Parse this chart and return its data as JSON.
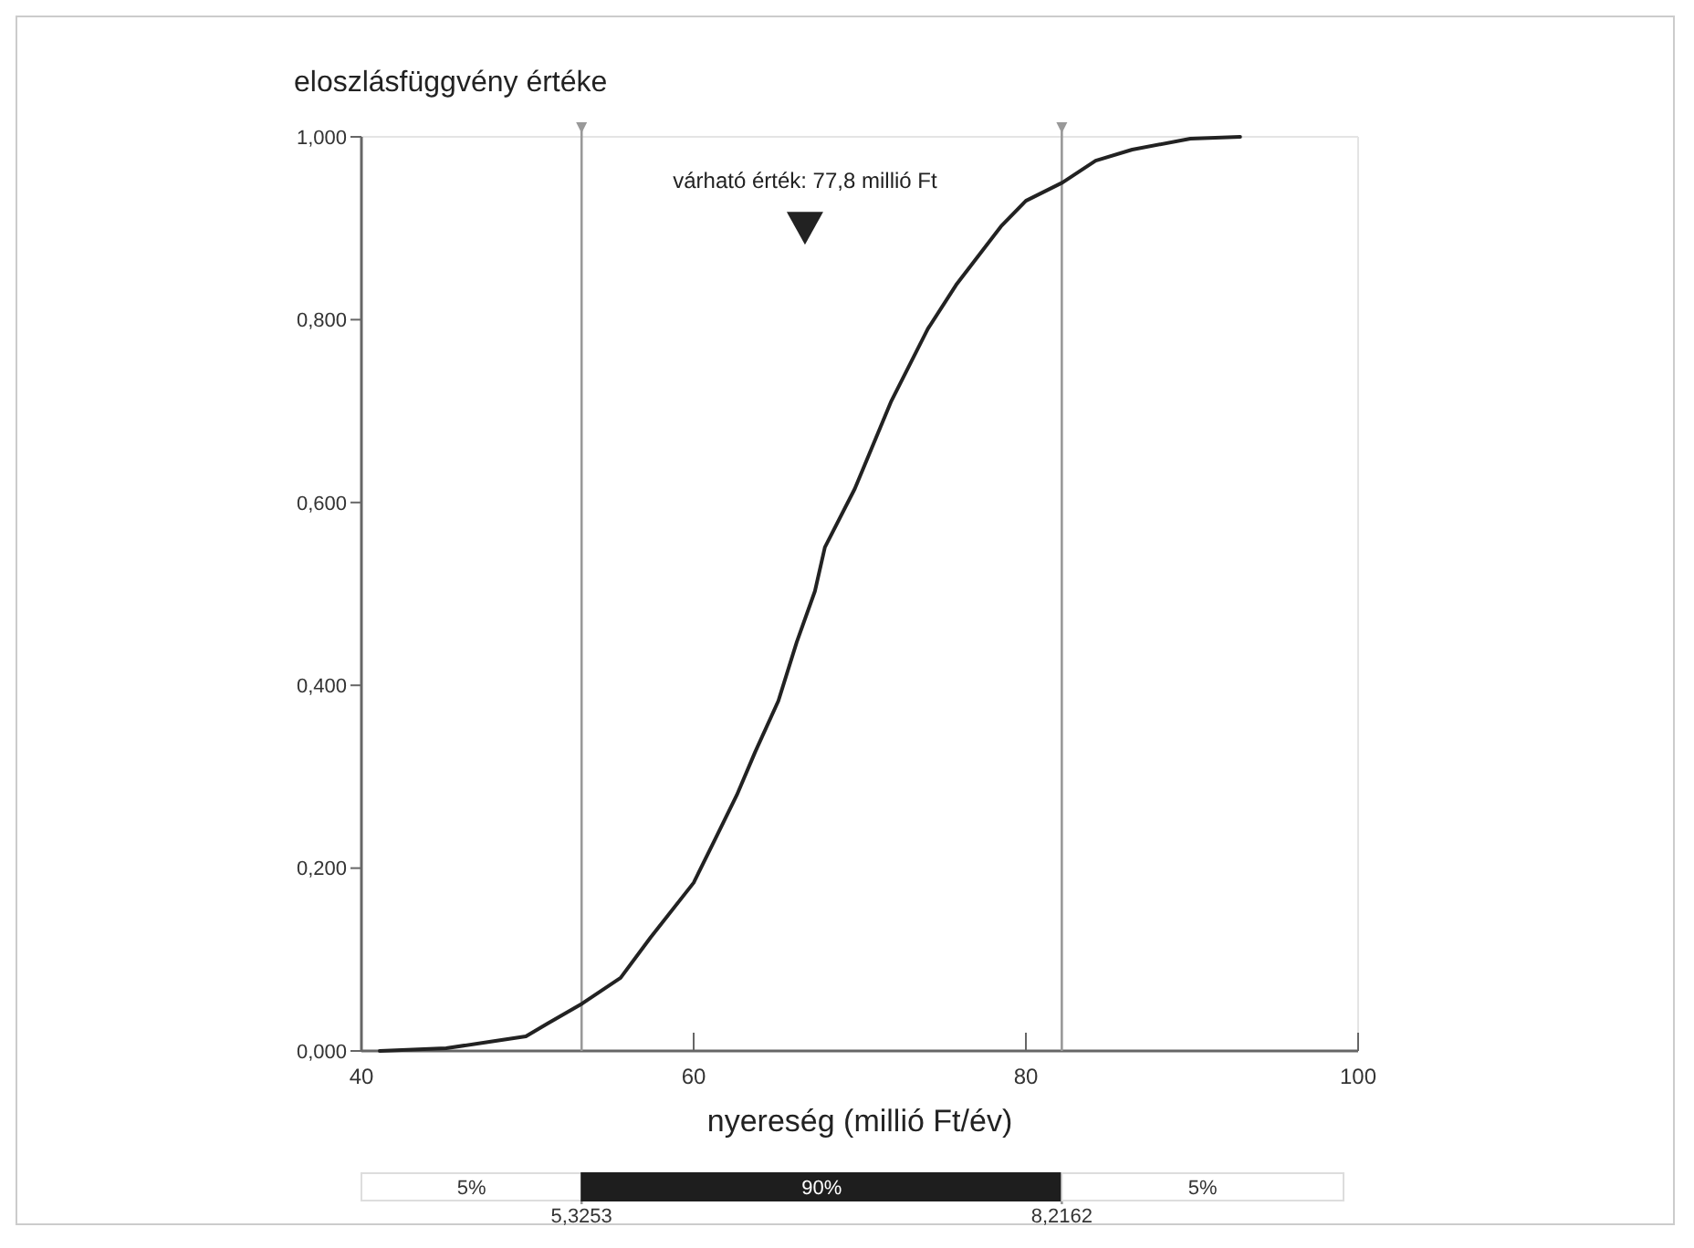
{
  "chart_data": {
    "type": "line",
    "ylabel": "eloszlásfüggvény értéke",
    "xlabel": "nyereség (millió Ft/év)",
    "x": [
      41.1,
      45.1,
      47.7,
      49.9,
      51.2,
      53.3,
      55.6,
      57.4,
      60,
      61.3,
      62.6,
      63.7,
      65.1,
      66.2,
      67.3,
      67.9,
      69.7,
      71.9,
      74.1,
      75.8,
      78.5,
      80,
      82.2,
      84.2,
      86.4,
      89.9,
      92.9
    ],
    "series": [
      {
        "color": "#222222",
        "values": [
          0,
          0.003,
          0.01,
          0.016,
          0.03,
          0.052,
          0.08,
          0.124,
          0.184,
          0.232,
          0.28,
          0.327,
          0.383,
          0.447,
          0.503,
          0.551,
          0.615,
          0.711,
          0.79,
          0.838,
          0.902,
          0.93,
          0.95,
          0.974,
          0.986,
          0.998,
          1.0
        ]
      }
    ],
    "xlim": [
      40,
      100
    ],
    "xticks": [
      40,
      60,
      80,
      100
    ],
    "ylim": [
      0,
      1
    ],
    "yticks": [
      {
        "value": 0,
        "label": "0,000"
      },
      {
        "value": 0.2,
        "label": "0,200"
      },
      {
        "value": 0.4,
        "label": "0,400"
      },
      {
        "value": 0.6,
        "label": "0,600"
      },
      {
        "value": 0.8,
        "label": "0,800"
      },
      {
        "value": 1,
        "label": "1,000"
      }
    ],
    "ref_lines": [
      {
        "axis": "x",
        "value": 53.253,
        "color": "#999999"
      },
      {
        "axis": "x",
        "value": 82.162,
        "color": "#999999"
      }
    ],
    "annotations": [
      {
        "text": "várható érték: 77,8 millió Ft",
        "x": 66.7,
        "y": 0.9
      },
      "5%",
      "90%",
      "5%",
      "5,3253",
      "8,2162"
    ],
    "marker": "none",
    "line_style": "solid",
    "grid": false
  }
}
